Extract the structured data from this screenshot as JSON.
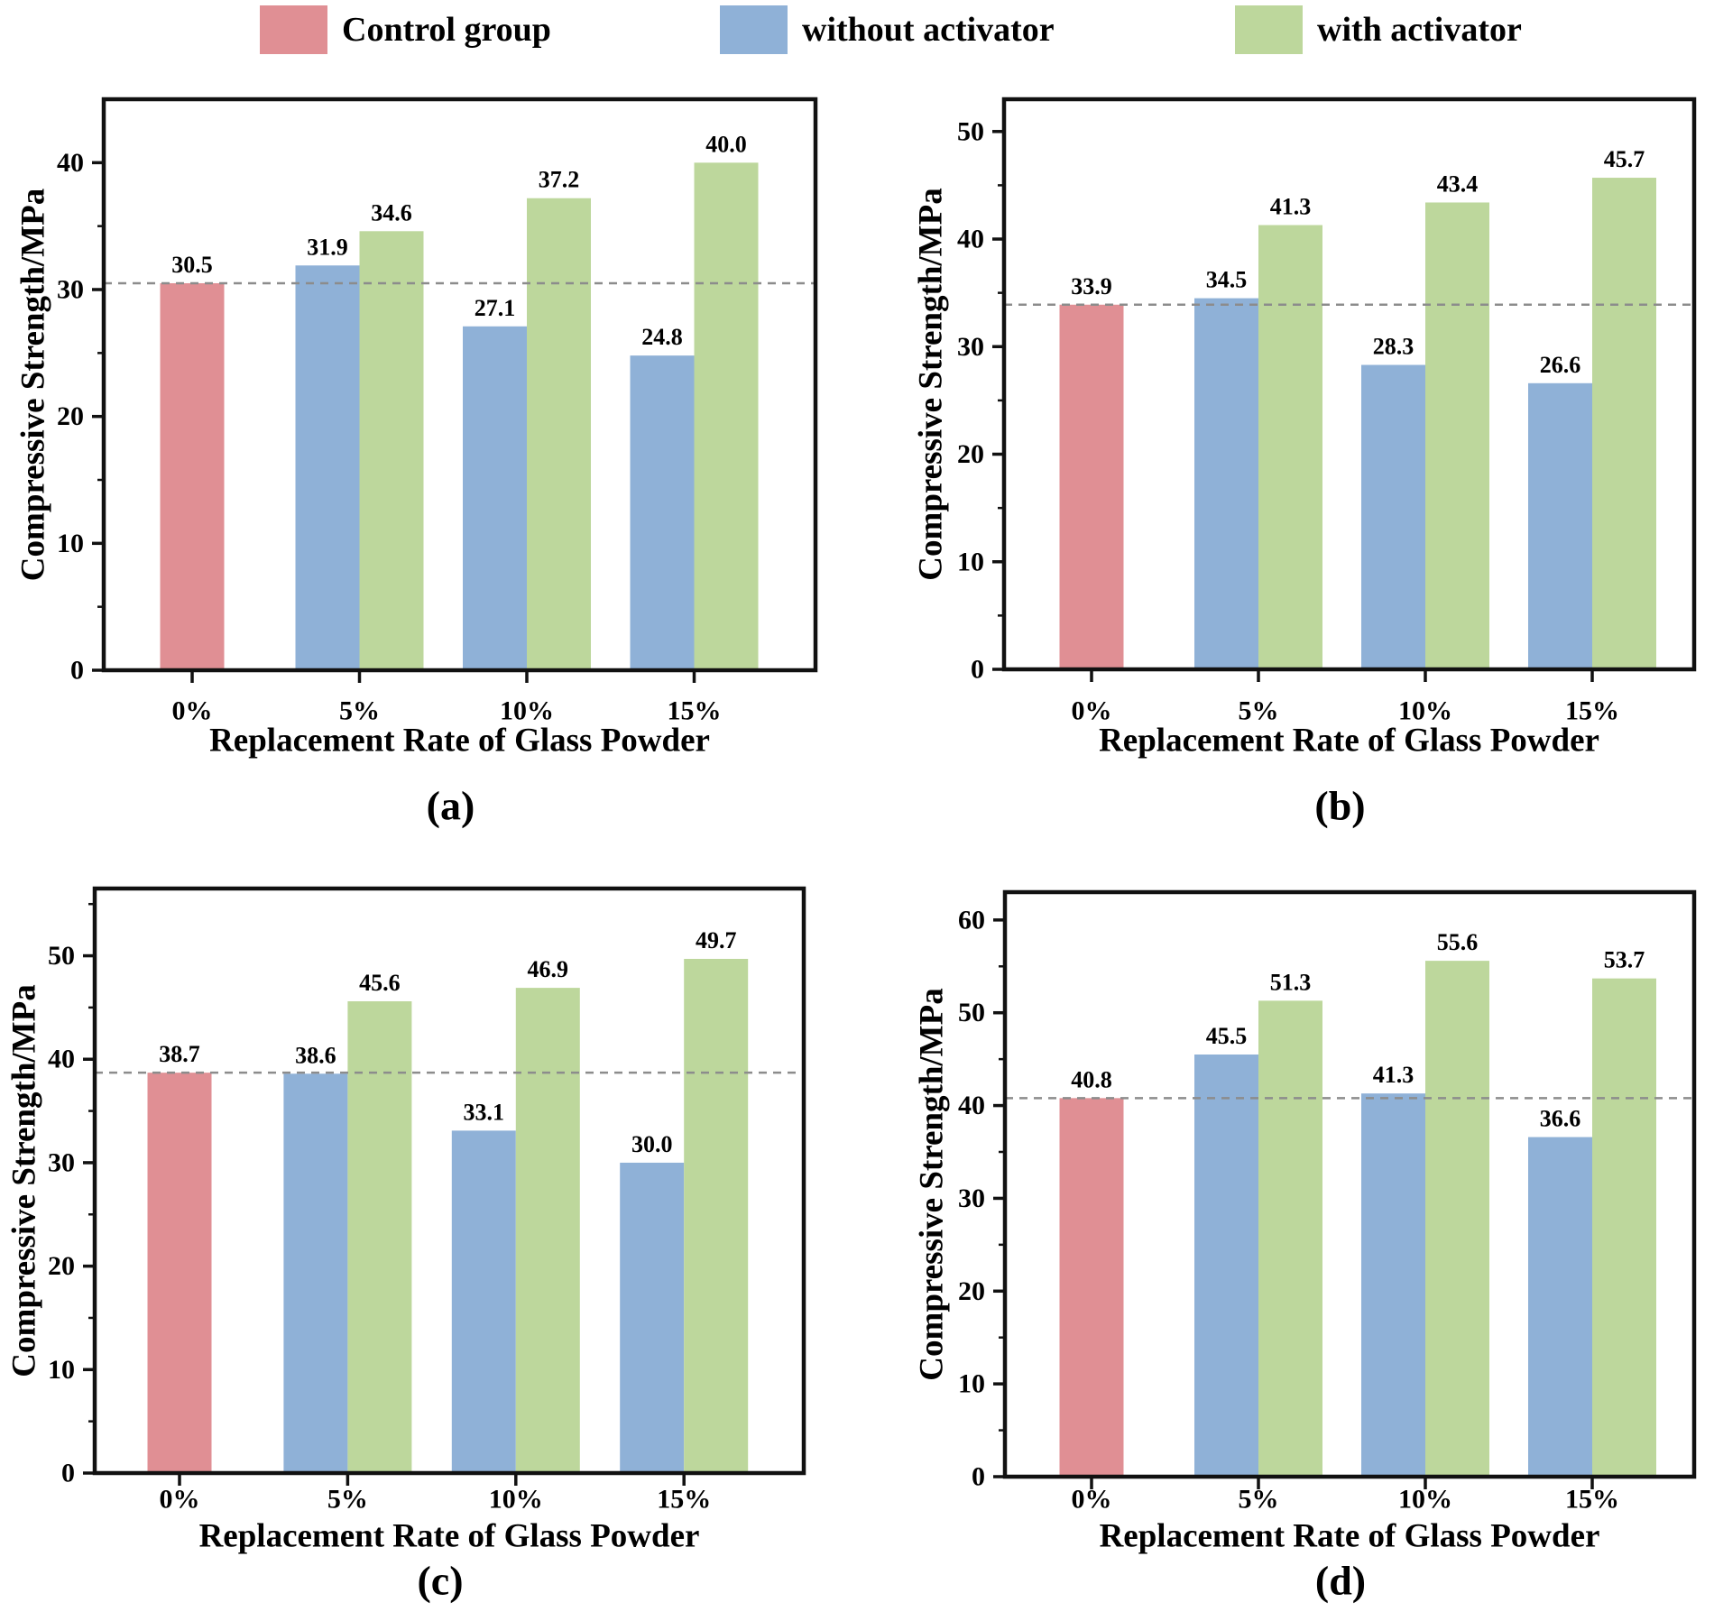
{
  "style": {
    "axis_color": "#111111",
    "reference_line_color": "#8c8c8c",
    "control_color": "#E08F94",
    "without_color": "#8FB1D7",
    "with_color": "#BDD79C"
  },
  "legend": {
    "items": [
      {
        "label": "Control group",
        "color": "#E08F94"
      },
      {
        "label": "without activator",
        "color": "#8FB1D7"
      },
      {
        "label": "with activator",
        "color": "#BDD79C"
      }
    ]
  },
  "chart_data": [
    {
      "type": "bar",
      "panel_label": "(a)",
      "xlabel": "Replacement Rate of Glass Powder",
      "ylabel": "Compressive Strength/MPa",
      "categories": [
        "0%",
        "5%",
        "10%",
        "15%"
      ],
      "series": [
        {
          "name": "Control group",
          "values": [
            30.5,
            null,
            null,
            null
          ]
        },
        {
          "name": "without activator",
          "values": [
            null,
            31.9,
            27.1,
            24.8
          ]
        },
        {
          "name": "with activator",
          "values": [
            null,
            34.6,
            37.2,
            40.0
          ]
        }
      ],
      "reference_line": 30.5,
      "ylim": [
        0,
        45
      ],
      "yticks": [
        0,
        10,
        20,
        30,
        40
      ],
      "minor_step": 5,
      "grid": false,
      "legend_position": "top"
    },
    {
      "type": "bar",
      "panel_label": "(b)",
      "xlabel": "Replacement Rate of Glass Powder",
      "ylabel": "Compressive Strength/MPa",
      "categories": [
        "0%",
        "5%",
        "10%",
        "15%"
      ],
      "series": [
        {
          "name": "Control group",
          "values": [
            33.9,
            null,
            null,
            null
          ]
        },
        {
          "name": "without activator",
          "values": [
            null,
            34.5,
            28.3,
            26.6
          ]
        },
        {
          "name": "with activator",
          "values": [
            null,
            41.3,
            43.4,
            45.7
          ]
        }
      ],
      "reference_line": 33.9,
      "ylim": [
        0,
        53
      ],
      "yticks": [
        0,
        10,
        20,
        30,
        40,
        50
      ],
      "minor_step": 5,
      "grid": false,
      "legend_position": "top"
    },
    {
      "type": "bar",
      "panel_label": "(c)",
      "xlabel": "Replacement Rate of Glass Powder",
      "ylabel": "Compressive Strength/MPa",
      "categories": [
        "0%",
        "5%",
        "10%",
        "15%"
      ],
      "series": [
        {
          "name": "Control group",
          "values": [
            38.7,
            null,
            null,
            null
          ]
        },
        {
          "name": "without activator",
          "values": [
            null,
            38.6,
            33.1,
            30.0
          ]
        },
        {
          "name": "with activator",
          "values": [
            null,
            45.6,
            46.9,
            49.7
          ]
        }
      ],
      "reference_line": 38.7,
      "ylim": [
        0,
        56.5
      ],
      "yticks": [
        0,
        10,
        20,
        30,
        40,
        50
      ],
      "minor_step": 5,
      "grid": false,
      "legend_position": "top"
    },
    {
      "type": "bar",
      "panel_label": "(d)",
      "xlabel": "Replacement Rate of Glass Powder",
      "ylabel": "Compressive Strength/MPa",
      "categories": [
        "0%",
        "5%",
        "10%",
        "15%"
      ],
      "series": [
        {
          "name": "Control group",
          "values": [
            40.8,
            null,
            null,
            null
          ]
        },
        {
          "name": "without activator",
          "values": [
            null,
            45.5,
            41.3,
            36.6
          ]
        },
        {
          "name": "with activator",
          "values": [
            null,
            51.3,
            55.6,
            53.7
          ]
        }
      ],
      "reference_line": 40.8,
      "ylim": [
        0,
        63
      ],
      "yticks": [
        0,
        10,
        20,
        30,
        40,
        50,
        60
      ],
      "minor_step": 5,
      "grid": false,
      "legend_position": "top"
    }
  ]
}
